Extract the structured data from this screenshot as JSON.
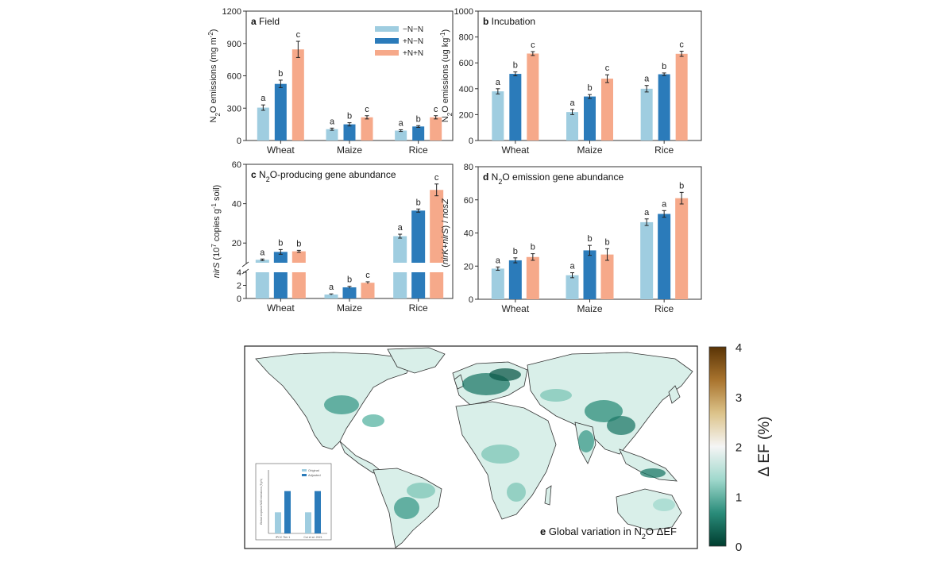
{
  "chart_data": [
    {
      "id": "a",
      "type": "bar",
      "panel_letter": "a",
      "title": "Field",
      "ylabel_html": "N<tspan baseline-shift='sub' font-size='8'>2</tspan>O emissions (mg m<tspan baseline-shift='super' font-size='8'>-2</tspan>)",
      "ylim": [
        0,
        1200
      ],
      "yticks": [
        0,
        300,
        600,
        900,
        1200
      ],
      "categories": [
        "Wheat",
        "Maize",
        "Rice"
      ],
      "series": [
        {
          "name": "−N−N",
          "color": "#9fcde0",
          "values": [
            305,
            105,
            92
          ],
          "errors": [
            25,
            10,
            8
          ],
          "letters": [
            "a",
            "a",
            "a"
          ]
        },
        {
          "name": "+N−N",
          "color": "#2b7bba",
          "values": [
            525,
            150,
            130
          ],
          "errors": [
            35,
            15,
            8
          ],
          "letters": [
            "b",
            "b",
            "b"
          ]
        },
        {
          "name": "+N+N",
          "color": "#f6a98a",
          "values": [
            845,
            215,
            215
          ],
          "errors": [
            75,
            15,
            15
          ],
          "letters": [
            "c",
            "c",
            "c"
          ]
        }
      ],
      "legend": [
        "−N−N",
        "+N−N",
        "+N+N"
      ]
    },
    {
      "id": "b",
      "type": "bar",
      "panel_letter": "b",
      "title": "Incubation",
      "ylabel_html": "N<tspan baseline-shift='sub' font-size='8'>2</tspan>O emissions (ug kg<tspan baseline-shift='super' font-size='8'>-1</tspan>)",
      "ylim": [
        0,
        1000
      ],
      "yticks": [
        0,
        200,
        400,
        600,
        800,
        1000
      ],
      "categories": [
        "Wheat",
        "Maize",
        "Rice"
      ],
      "series": [
        {
          "name": "−N−N",
          "color": "#9fcde0",
          "values": [
            380,
            220,
            400
          ],
          "errors": [
            20,
            20,
            25
          ],
          "letters": [
            "a",
            "a",
            "a"
          ]
        },
        {
          "name": "+N−N",
          "color": "#2b7bba",
          "values": [
            515,
            340,
            512
          ],
          "errors": [
            15,
            15,
            10
          ],
          "letters": [
            "b",
            "b",
            "b"
          ]
        },
        {
          "name": "+N+N",
          "color": "#f6a98a",
          "values": [
            672,
            478,
            670
          ],
          "errors": [
            15,
            30,
            20
          ],
          "letters": [
            "c",
            "c",
            "c"
          ]
        }
      ]
    },
    {
      "id": "c",
      "type": "bar",
      "panel_letter": "c",
      "title_html": "N<tspan baseline-shift='sub' font-size='9'>2</tspan>O-producing gene abundance",
      "ylabel_html": "<tspan font-style='italic'>nirS</tspan> (10<tspan baseline-shift='super' font-size='8'>7</tspan> copies g<tspan baseline-shift='super' font-size='8'>-1</tspan> soil)",
      "broken_axis": true,
      "lower_ylim": [
        0,
        4
      ],
      "lower_yticks": [
        0,
        2,
        4
      ],
      "upper_ylim": [
        10,
        60
      ],
      "upper_yticks": [
        20,
        40,
        60
      ],
      "categories": [
        "Wheat",
        "Maize",
        "Rice"
      ],
      "series": [
        {
          "name": "−N−N",
          "color": "#9fcde0",
          "values": [
            11.5,
            0.6,
            23.5
          ],
          "errors": [
            0.4,
            0.1,
            1.0
          ],
          "letters": [
            "a",
            "a",
            "a"
          ]
        },
        {
          "name": "+N−N",
          "color": "#2b7bba",
          "values": [
            15.5,
            1.7,
            36.5
          ],
          "errors": [
            1.2,
            0.15,
            0.8
          ],
          "letters": [
            "b",
            "b",
            "b"
          ]
        },
        {
          "name": "+N+N",
          "color": "#f6a98a",
          "values": [
            15.8,
            2.4,
            47
          ],
          "errors": [
            0.5,
            0.15,
            3.0
          ],
          "letters": [
            "b",
            "c",
            "c"
          ]
        }
      ]
    },
    {
      "id": "d",
      "type": "bar",
      "panel_letter": "d",
      "title_html": "N<tspan baseline-shift='sub' font-size='9'>2</tspan>O emission gene abundance",
      "ylabel_html": "(<tspan font-style='italic'>nirK</tspan>+<tspan font-style='italic'>nirS</tspan>) / <tspan font-style='italic'>nosZ</tspan>",
      "ylim": [
        0,
        80
      ],
      "yticks": [
        0,
        20,
        40,
        60,
        80
      ],
      "categories": [
        "Wheat",
        "Maize",
        "Rice"
      ],
      "series": [
        {
          "name": "−N−N",
          "color": "#9fcde0",
          "values": [
            18.5,
            14.5,
            46.5
          ],
          "errors": [
            1.0,
            1.5,
            2.0
          ],
          "letters": [
            "a",
            "a",
            "a"
          ]
        },
        {
          "name": "+N−N",
          "color": "#2b7bba",
          "values": [
            23.5,
            29.5,
            51.5
          ],
          "errors": [
            1.5,
            3.0,
            2.0
          ],
          "letters": [
            "b",
            "b",
            "a"
          ]
        },
        {
          "name": "+N+N",
          "color": "#f6a98a",
          "values": [
            25.5,
            27,
            61
          ],
          "errors": [
            2.0,
            3.5,
            3.5
          ],
          "letters": [
            "b",
            "b",
            "b"
          ]
        }
      ]
    },
    {
      "id": "e",
      "type": "map",
      "panel_letter": "e",
      "title_html": "Global variation in N<tspan baseline-shift='sub' font-size='9'>2</tspan>O ΔEF",
      "colorbar": {
        "label": "Δ EF (%)",
        "range": [
          0,
          4
        ],
        "ticks": [
          0,
          1,
          2,
          3,
          4
        ],
        "colors": [
          "#003d2f",
          "#2a8c7a",
          "#9fd8cc",
          "#f5f5f5",
          "#dcc38a",
          "#a9742e",
          "#5a3406"
        ]
      },
      "inset": {
        "type": "bar",
        "ylabel": "Global cropland N2O emissions (Tg N)",
        "categories": [
          "IPCC Tier 1",
          "Cui et al. 2021"
        ],
        "series": [
          {
            "name": "Original",
            "color": "#9fcde0",
            "values": [
              1.0,
              1.0
            ]
          },
          {
            "name": "Adjusted",
            "color": "#2b7bba",
            "values": [
              2.0,
              2.0
            ]
          }
        ],
        "ylim": [
          0,
          3
        ]
      }
    }
  ]
}
